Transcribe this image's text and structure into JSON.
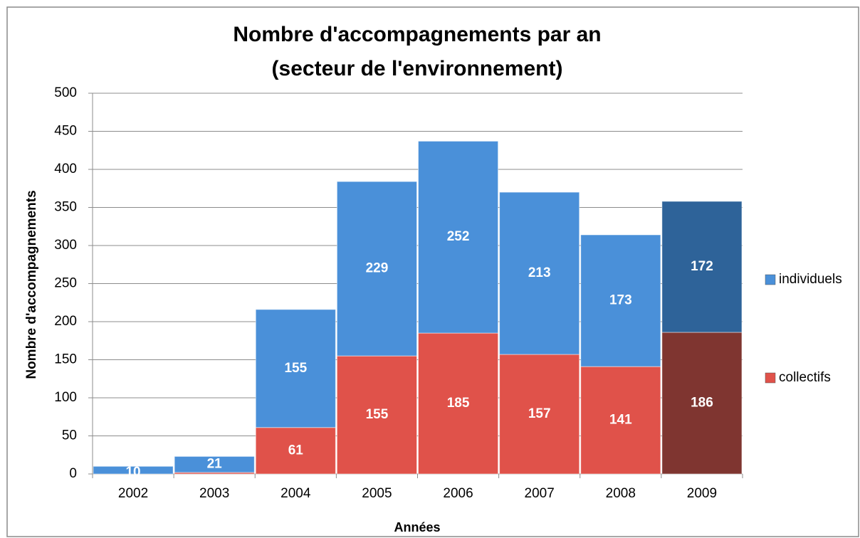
{
  "chart_data": {
    "type": "stacked_bar",
    "title": [
      "Nombre d'accompagnements par an",
      "(secteur de l'environnement)"
    ],
    "x_label": "Années",
    "y_label": "Nombre d'accompagnements",
    "categories": [
      "2002",
      "2003",
      "2004",
      "2005",
      "2006",
      "2007",
      "2008",
      "2009"
    ],
    "series": [
      {
        "name": "collectifs",
        "color": "#e0524a",
        "colors": [
          "#e0524a",
          "#e0524a",
          "#e0524a",
          "#e0524a",
          "#e0524a",
          "#e0524a",
          "#e0524a",
          "#7f3530"
        ],
        "values": [
          0,
          2,
          61,
          155,
          185,
          157,
          141,
          186
        ],
        "value_labels": [
          null,
          null,
          "61",
          "155",
          "185",
          "157",
          "141",
          "186"
        ]
      },
      {
        "name": "individuels",
        "color": "#4a90d9",
        "colors": [
          "#4a90d9",
          "#4a90d9",
          "#4a90d9",
          "#4a90d9",
          "#4a90d9",
          "#4a90d9",
          "#4a90d9",
          "#2e6399"
        ],
        "values": [
          10,
          21,
          155,
          229,
          252,
          213,
          173,
          172
        ],
        "value_labels": [
          "10",
          "21",
          "155",
          "229",
          "252",
          "213",
          "173",
          "172"
        ]
      }
    ],
    "ylim": [
      0,
      500
    ],
    "yticks": [
      0,
      50,
      100,
      150,
      200,
      250,
      300,
      350,
      400,
      450,
      500
    ],
    "grid": true,
    "legend": "right"
  }
}
